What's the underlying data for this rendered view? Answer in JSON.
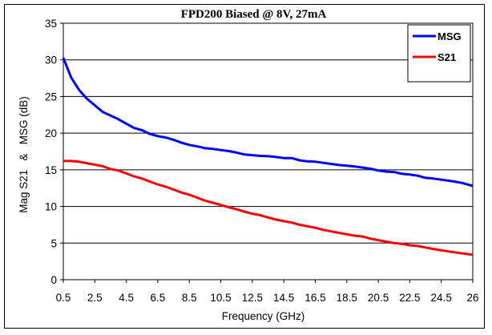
{
  "chart_data": {
    "type": "line",
    "title": "FPD200 Biased @ 8V, 27mA",
    "xlabel": "Frequency (GHz)",
    "ylabel": "Mag S21   &   MSG (dB)",
    "xlim": [
      0.5,
      26
    ],
    "ylim": [
      0,
      35
    ],
    "xticks": [
      "0.5",
      "2.5",
      "4.5",
      "6.5",
      "8.5",
      "10.5",
      "12.5",
      "14.5",
      "16.5",
      "18.5",
      "20.5",
      "22.5",
      "24.5",
      "26"
    ],
    "yticks": [
      "0",
      "5",
      "10",
      "15",
      "20",
      "25",
      "30",
      "35"
    ],
    "grid": true,
    "legend_position": "top-right",
    "x": [
      0.5,
      1.0,
      1.5,
      2.0,
      2.5,
      3.0,
      3.5,
      4.0,
      4.5,
      5.0,
      5.5,
      6.0,
      6.5,
      7.0,
      7.5,
      8.0,
      8.5,
      9.0,
      9.5,
      10.0,
      10.5,
      11.0,
      11.5,
      12.0,
      12.5,
      13.0,
      13.5,
      14.0,
      14.5,
      15.0,
      15.5,
      16.0,
      16.5,
      17.0,
      17.5,
      18.0,
      18.5,
      19.0,
      19.5,
      20.0,
      20.5,
      21.0,
      21.5,
      22.0,
      22.5,
      23.0,
      23.5,
      24.0,
      24.5,
      25.0,
      25.5,
      26.0
    ],
    "series": [
      {
        "name": "MSG",
        "color": "#0000ff",
        "values": [
          30.3,
          27.6,
          25.9,
          24.7,
          23.8,
          22.9,
          22.4,
          21.9,
          21.3,
          20.7,
          20.4,
          19.9,
          19.6,
          19.4,
          19.1,
          18.7,
          18.4,
          18.2,
          17.95,
          17.85,
          17.7,
          17.55,
          17.35,
          17.1,
          17.0,
          16.9,
          16.85,
          16.75,
          16.6,
          16.6,
          16.3,
          16.15,
          16.1,
          15.95,
          15.8,
          15.65,
          15.55,
          15.45,
          15.3,
          15.15,
          14.9,
          14.75,
          14.7,
          14.45,
          14.35,
          14.2,
          13.9,
          13.8,
          13.65,
          13.45,
          13.2,
          12.8
        ]
      },
      {
        "name": "S21",
        "color": "#ff0000",
        "values": [
          16.2,
          16.2,
          16.1,
          15.9,
          15.7,
          15.5,
          15.1,
          14.9,
          14.5,
          14.1,
          13.8,
          13.4,
          13.0,
          12.7,
          12.3,
          11.9,
          11.6,
          11.2,
          10.8,
          10.5,
          10.2,
          9.9,
          9.6,
          9.3,
          9.0,
          8.8,
          8.5,
          8.2,
          8.0,
          7.8,
          7.5,
          7.3,
          7.1,
          6.8,
          6.6,
          6.4,
          6.2,
          6.0,
          5.9,
          5.6,
          5.4,
          5.2,
          5.0,
          4.9,
          4.7,
          4.6,
          4.4,
          4.2,
          4.0,
          3.8,
          3.6,
          3.4
        ]
      }
    ]
  }
}
